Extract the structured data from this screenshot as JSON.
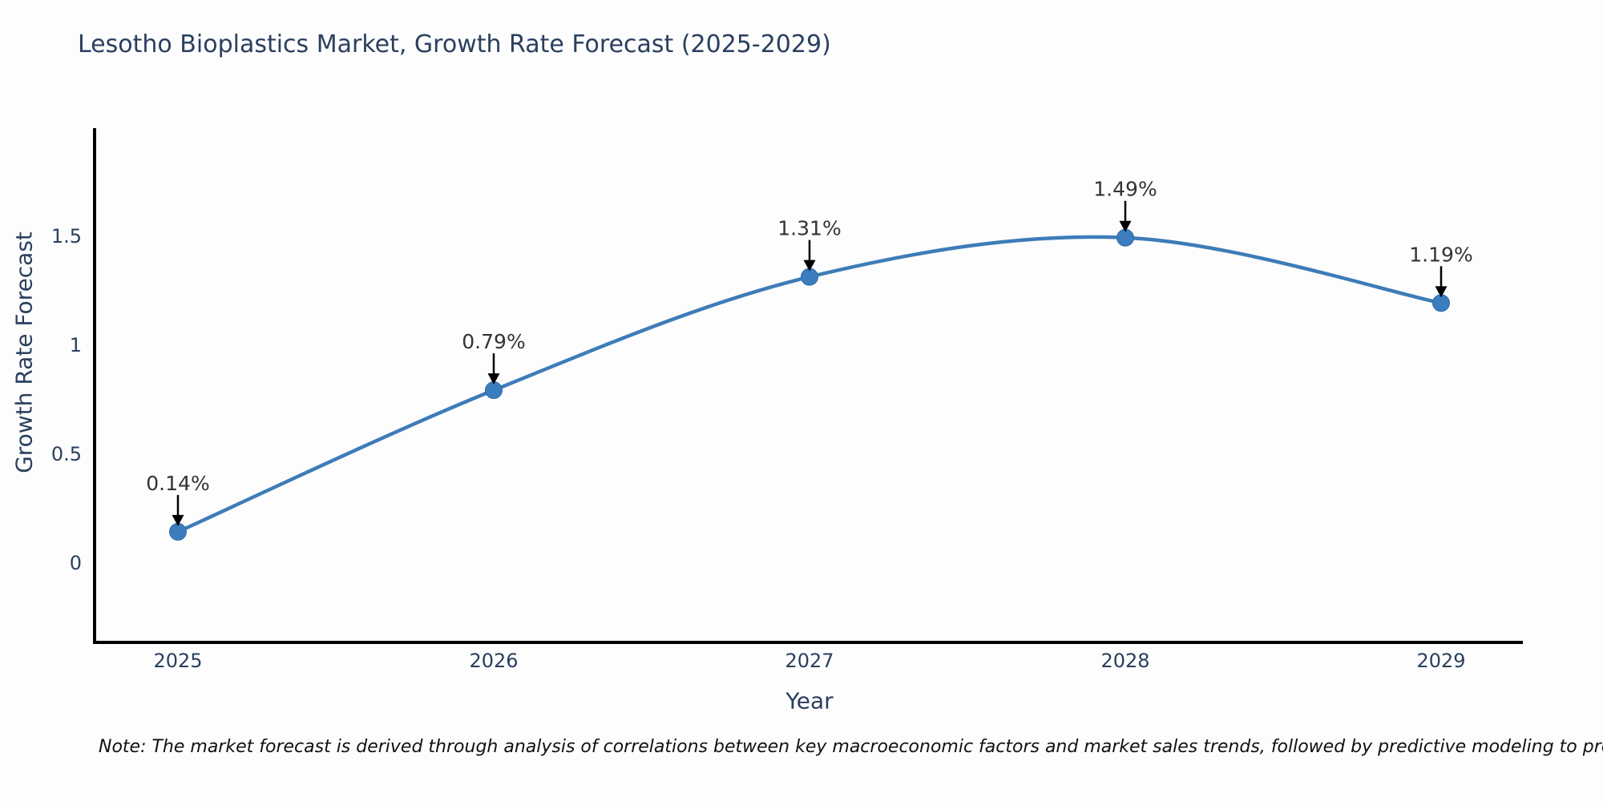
{
  "chart_data": {
    "type": "line",
    "title": "Lesotho Bioplastics Market, Growth Rate Forecast (2025-2029)",
    "xlabel": "Year",
    "ylabel": "Growth Rate Forecast",
    "categories": [
      "2025",
      "2026",
      "2027",
      "2028",
      "2029"
    ],
    "series": [
      {
        "name": "Growth Rate Forecast",
        "values": [
          0.14,
          0.79,
          1.31,
          1.49,
          1.19
        ],
        "point_labels": [
          "0.14%",
          "0.79%",
          "1.31%",
          "1.49%",
          "1.19%"
        ]
      }
    ],
    "y_ticks": [
      0,
      0.5,
      1,
      1.5
    ],
    "y_tick_labels": [
      "0",
      "0.5",
      "1",
      "1.5"
    ],
    "ylim": [
      -0.37,
      1.99
    ],
    "grid": false,
    "legend_position": "none",
    "line_color": "#3e7cb8",
    "marker_color": "#3a7ebf",
    "marker_edge_color": "#2f6ba3",
    "axis_color": "#000000",
    "tick_color": "#2a3f5f",
    "title_color": "#2a3f5f",
    "annotation_color": "#333333",
    "annotation_arrow_color": "#000000"
  },
  "note": {
    "text": "Note: The market forecast is derived through analysis of correlations between key macroeconomic factors and market sales trends, followed by predictive modeling to project future sales"
  }
}
